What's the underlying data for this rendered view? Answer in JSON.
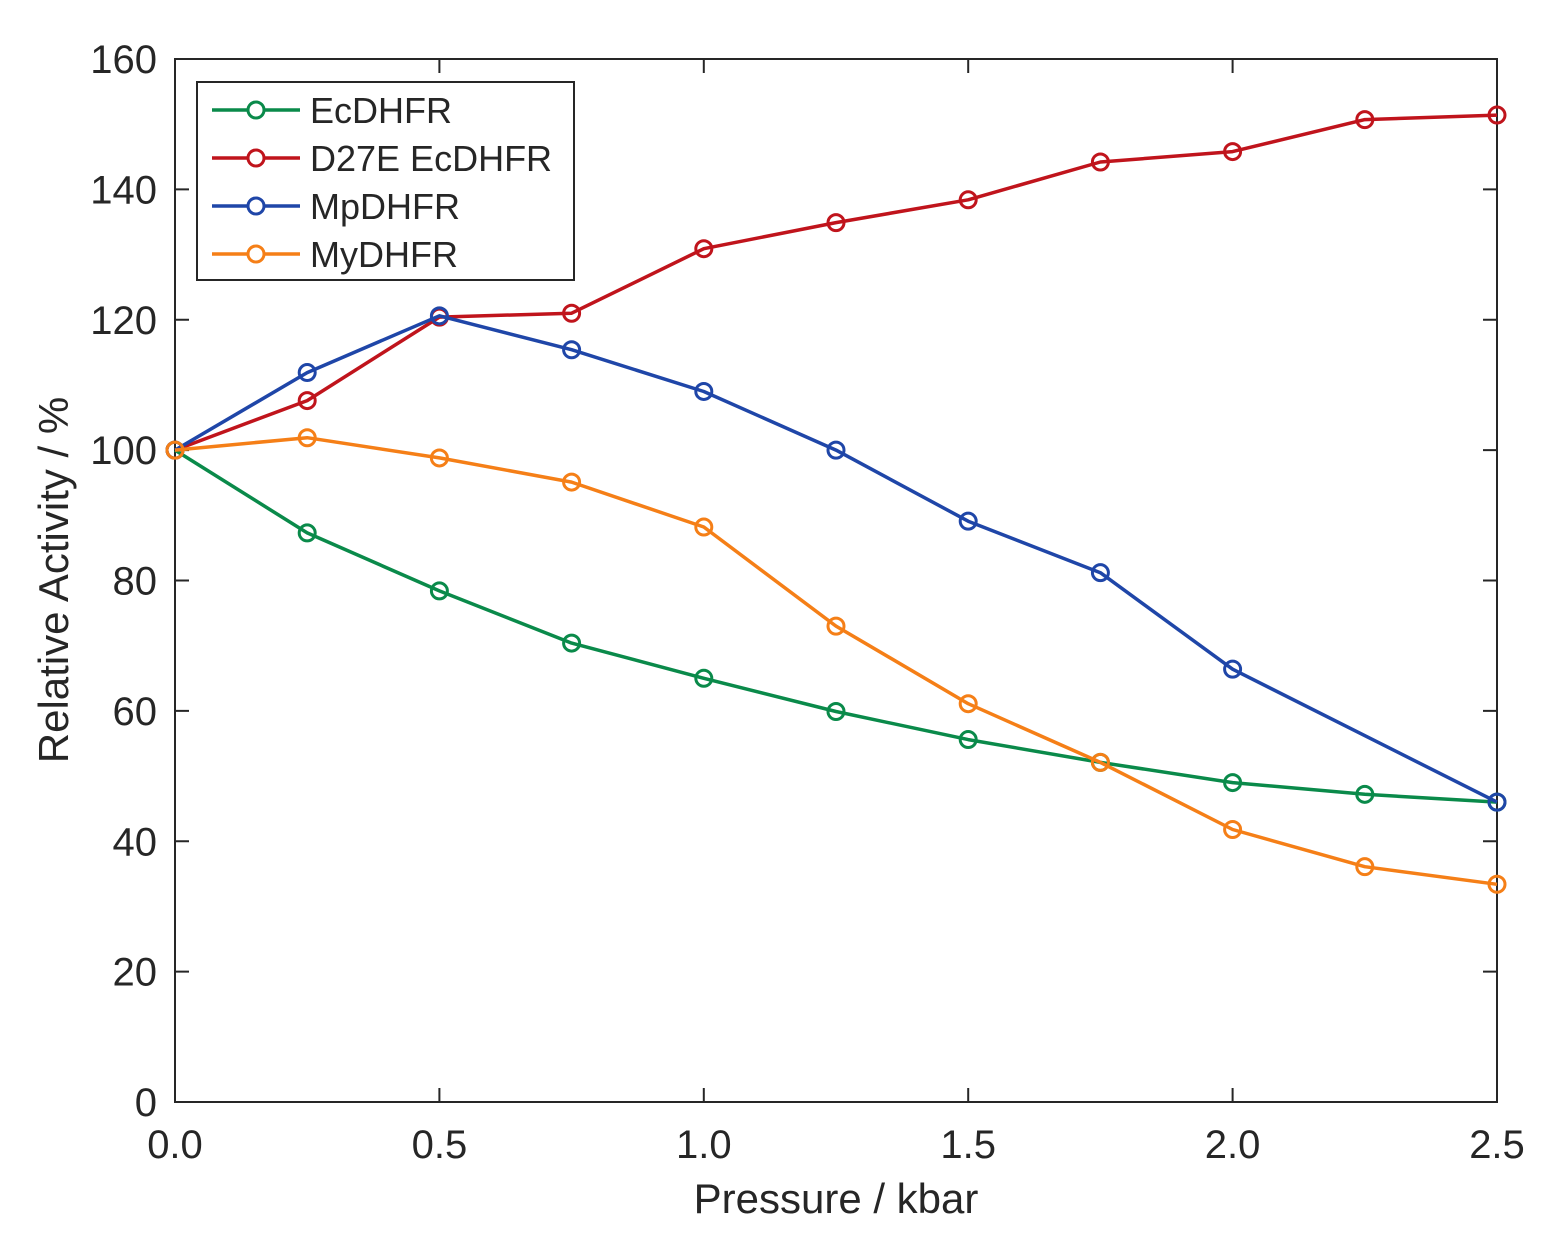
{
  "chart_data": {
    "type": "line",
    "title": "",
    "xlabel": "Pressure / kbar",
    "ylabel": "Relative Activity / %",
    "xlim": [
      0.0,
      2.5
    ],
    "ylim": [
      0,
      160
    ],
    "xticks": [
      0.0,
      0.5,
      1.0,
      1.5,
      2.0,
      2.5
    ],
    "xtick_labels": [
      "0.0",
      "0.5",
      "1.0",
      "1.5",
      "2.0",
      "2.5"
    ],
    "yticks": [
      0,
      20,
      40,
      60,
      80,
      100,
      120,
      140,
      160
    ],
    "ytick_labels": [
      "0",
      "20",
      "40",
      "60",
      "80",
      "100",
      "120",
      "140",
      "160"
    ],
    "grid": false,
    "legend_position": "top-left",
    "series": [
      {
        "name": "EcDHFR",
        "color": "#0a8a4a",
        "x": [
          0.0,
          0.25,
          0.5,
          0.75,
          1.0,
          1.25,
          1.5,
          1.75,
          2.0,
          2.25,
          2.5
        ],
        "values": [
          100,
          87.3,
          78.4,
          70.4,
          65.0,
          59.9,
          55.6,
          52.1,
          49.0,
          47.2,
          46.0
        ]
      },
      {
        "name": "D27E EcDHFR",
        "color": "#c0141c",
        "x": [
          0.0,
          0.25,
          0.5,
          0.75,
          1.0,
          1.25,
          1.5,
          1.75,
          2.0,
          2.25,
          2.5
        ],
        "values": [
          100,
          107.6,
          120.4,
          121.0,
          130.9,
          134.9,
          138.4,
          144.2,
          145.8,
          150.7,
          151.4
        ]
      },
      {
        "name": "MpDHFR",
        "color": "#1f46a8",
        "x": [
          0.0,
          0.25,
          0.5,
          0.75,
          1.0,
          1.25,
          1.5,
          1.75,
          2.0,
          2.5
        ],
        "values": [
          100,
          111.9,
          120.6,
          115.4,
          109.0,
          100.0,
          89.1,
          81.2,
          66.4,
          46.0
        ]
      },
      {
        "name": "MyDHFR",
        "color": "#f57f17",
        "x": [
          0.0,
          0.25,
          0.5,
          0.75,
          1.0,
          1.25,
          1.5,
          1.75,
          2.0,
          2.25,
          2.5
        ],
        "values": [
          100,
          101.9,
          98.8,
          95.1,
          88.2,
          73.0,
          61.1,
          52.1,
          41.8,
          36.1,
          33.4
        ]
      }
    ]
  }
}
